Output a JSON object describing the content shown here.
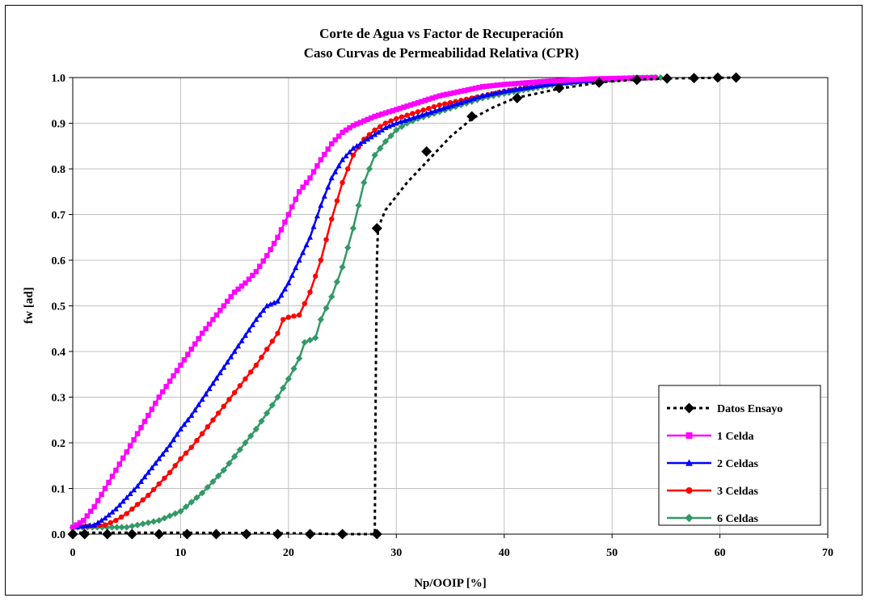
{
  "chart_data": {
    "type": "line",
    "title": "Corte de Agua vs Factor de Recuperación",
    "subtitle": "Caso Curvas de Permeabilidad Relativa (CPR)",
    "xlabel": "Np/OOIP [%]",
    "ylabel": "fw [ad]",
    "xlim": [
      0,
      70
    ],
    "ylim": [
      0,
      1
    ],
    "x_ticks": [
      "0",
      "10",
      "20",
      "30",
      "40",
      "50",
      "60",
      "70"
    ],
    "y_ticks": [
      "0.0",
      "0.1",
      "0.2",
      "0.3",
      "0.4",
      "0.5",
      "0.6",
      "0.7",
      "0.8",
      "0.9",
      "1.0"
    ],
    "grid": true,
    "legend_position": "bottom-right",
    "series": [
      {
        "name": "Datos Ensayo",
        "color": "#000000",
        "marker": "diamond",
        "line": "dotted",
        "line_points": [
          [
            0,
            0.003
          ],
          [
            10,
            0.003
          ],
          [
            20,
            0.002
          ],
          [
            25,
            0.0
          ],
          [
            28.0,
            0.0
          ],
          [
            28.1,
            0.35
          ],
          [
            28.2,
            0.6
          ],
          [
            28.3,
            0.67
          ],
          [
            29,
            0.71
          ],
          [
            31,
            0.77
          ],
          [
            33,
            0.82
          ],
          [
            35,
            0.87
          ],
          [
            37,
            0.91
          ],
          [
            39,
            0.935
          ],
          [
            41,
            0.955
          ],
          [
            45,
            0.975
          ],
          [
            49,
            0.99
          ],
          [
            52,
            0.995
          ],
          [
            55,
            0.998
          ],
          [
            61.5,
            1.0
          ]
        ],
        "markers": [
          [
            0,
            0.0
          ],
          [
            1.1,
            0.0
          ],
          [
            3.2,
            0.0
          ],
          [
            5.5,
            0.0
          ],
          [
            8,
            0.0
          ],
          [
            10.6,
            0.0
          ],
          [
            13.3,
            0.0
          ],
          [
            16.1,
            0.0
          ],
          [
            19,
            0.0
          ],
          [
            22,
            0.0
          ],
          [
            25,
            0.0
          ],
          [
            28.2,
            0.0
          ],
          [
            28.2,
            0.67
          ],
          [
            32.8,
            0.838
          ],
          [
            37,
            0.915
          ],
          [
            41.2,
            0.955
          ],
          [
            45.1,
            0.977
          ],
          [
            48.8,
            0.989
          ],
          [
            52.3,
            0.995
          ],
          [
            55.1,
            0.998
          ],
          [
            57.6,
            0.999
          ],
          [
            59.8,
            1.0
          ],
          [
            61.5,
            1.0
          ]
        ]
      },
      {
        "name": "1 Celda",
        "color": "#ff00ff",
        "marker": "square",
        "points": [
          [
            0,
            0.015
          ],
          [
            1,
            0.03
          ],
          [
            2,
            0.06
          ],
          [
            3,
            0.1
          ],
          [
            4,
            0.14
          ],
          [
            5,
            0.18
          ],
          [
            6,
            0.22
          ],
          [
            7,
            0.26
          ],
          [
            8,
            0.3
          ],
          [
            9,
            0.335
          ],
          [
            10,
            0.37
          ],
          [
            11,
            0.405
          ],
          [
            12,
            0.44
          ],
          [
            13,
            0.47
          ],
          [
            14,
            0.5
          ],
          [
            15,
            0.53
          ],
          [
            16,
            0.55
          ],
          [
            17,
            0.575
          ],
          [
            18,
            0.61
          ],
          [
            19,
            0.65
          ],
          [
            20,
            0.7
          ],
          [
            21,
            0.75
          ],
          [
            22,
            0.78
          ],
          [
            23,
            0.82
          ],
          [
            24,
            0.855
          ],
          [
            25,
            0.88
          ],
          [
            26,
            0.895
          ],
          [
            27,
            0.905
          ],
          [
            28,
            0.915
          ],
          [
            30,
            0.93
          ],
          [
            32,
            0.945
          ],
          [
            34,
            0.96
          ],
          [
            36,
            0.97
          ],
          [
            38,
            0.98
          ],
          [
            40,
            0.985
          ],
          [
            44,
            0.992
          ],
          [
            48,
            0.997
          ],
          [
            52,
            0.999
          ],
          [
            54,
            1.0
          ]
        ]
      },
      {
        "name": "2 Celdas",
        "color": "#0000ff",
        "marker": "triangle",
        "points": [
          [
            0,
            0.015
          ],
          [
            2,
            0.02
          ],
          [
            3,
            0.035
          ],
          [
            4,
            0.055
          ],
          [
            5,
            0.08
          ],
          [
            6,
            0.105
          ],
          [
            7,
            0.135
          ],
          [
            8,
            0.165
          ],
          [
            9,
            0.195
          ],
          [
            10,
            0.23
          ],
          [
            11,
            0.26
          ],
          [
            12,
            0.295
          ],
          [
            13,
            0.33
          ],
          [
            14,
            0.365
          ],
          [
            15,
            0.4
          ],
          [
            16,
            0.435
          ],
          [
            17,
            0.47
          ],
          [
            18,
            0.5
          ],
          [
            19,
            0.51
          ],
          [
            20,
            0.55
          ],
          [
            21,
            0.6
          ],
          [
            22,
            0.65
          ],
          [
            23,
            0.72
          ],
          [
            24,
            0.78
          ],
          [
            25,
            0.82
          ],
          [
            26,
            0.845
          ],
          [
            27,
            0.86
          ],
          [
            28,
            0.875
          ],
          [
            29,
            0.89
          ],
          [
            30,
            0.9
          ],
          [
            32,
            0.915
          ],
          [
            34,
            0.93
          ],
          [
            36,
            0.945
          ],
          [
            38,
            0.96
          ],
          [
            40,
            0.97
          ],
          [
            44,
            0.985
          ],
          [
            48,
            0.994
          ],
          [
            52,
            0.999
          ],
          [
            54,
            1.0
          ]
        ]
      },
      {
        "name": "3 Celdas",
        "color": "#ff0000",
        "marker": "circle",
        "points": [
          [
            0,
            0.015
          ],
          [
            3,
            0.02
          ],
          [
            4,
            0.03
          ],
          [
            5,
            0.045
          ],
          [
            6,
            0.065
          ],
          [
            7,
            0.085
          ],
          [
            8,
            0.11
          ],
          [
            9,
            0.135
          ],
          [
            10,
            0.165
          ],
          [
            11,
            0.19
          ],
          [
            12,
            0.22
          ],
          [
            13,
            0.25
          ],
          [
            14,
            0.28
          ],
          [
            15,
            0.31
          ],
          [
            16,
            0.34
          ],
          [
            17,
            0.37
          ],
          [
            18,
            0.405
          ],
          [
            19,
            0.44
          ],
          [
            19.5,
            0.47
          ],
          [
            20,
            0.475
          ],
          [
            21,
            0.48
          ],
          [
            22,
            0.53
          ],
          [
            23,
            0.6
          ],
          [
            24,
            0.69
          ],
          [
            25,
            0.77
          ],
          [
            26,
            0.83
          ],
          [
            27,
            0.865
          ],
          [
            28,
            0.885
          ],
          [
            29,
            0.9
          ],
          [
            30,
            0.91
          ],
          [
            32,
            0.925
          ],
          [
            34,
            0.94
          ],
          [
            36,
            0.95
          ],
          [
            38,
            0.96
          ],
          [
            40,
            0.97
          ],
          [
            44,
            0.985
          ],
          [
            48,
            0.994
          ],
          [
            52,
            0.999
          ],
          [
            54,
            1.0
          ]
        ]
      },
      {
        "name": "6 Celdas",
        "color": "#339966",
        "marker": "diamond",
        "points": [
          [
            0,
            0.015
          ],
          [
            5,
            0.015
          ],
          [
            6,
            0.02
          ],
          [
            7,
            0.025
          ],
          [
            8,
            0.03
          ],
          [
            9,
            0.04
          ],
          [
            10,
            0.05
          ],
          [
            11,
            0.07
          ],
          [
            12,
            0.09
          ],
          [
            13,
            0.115
          ],
          [
            14,
            0.14
          ],
          [
            15,
            0.17
          ],
          [
            16,
            0.2
          ],
          [
            17,
            0.23
          ],
          [
            18,
            0.265
          ],
          [
            19,
            0.3
          ],
          [
            20,
            0.34
          ],
          [
            21,
            0.385
          ],
          [
            21.5,
            0.42
          ],
          [
            22,
            0.425
          ],
          [
            22.5,
            0.43
          ],
          [
            23,
            0.47
          ],
          [
            24,
            0.52
          ],
          [
            25,
            0.585
          ],
          [
            26,
            0.67
          ],
          [
            27,
            0.77
          ],
          [
            28,
            0.83
          ],
          [
            29,
            0.86
          ],
          [
            30,
            0.885
          ],
          [
            31,
            0.9
          ],
          [
            32,
            0.91
          ],
          [
            34,
            0.925
          ],
          [
            36,
            0.94
          ],
          [
            38,
            0.955
          ],
          [
            40,
            0.965
          ],
          [
            44,
            0.982
          ],
          [
            48,
            0.993
          ],
          [
            52,
            0.999
          ],
          [
            54.5,
            1.0
          ]
        ]
      }
    ]
  }
}
